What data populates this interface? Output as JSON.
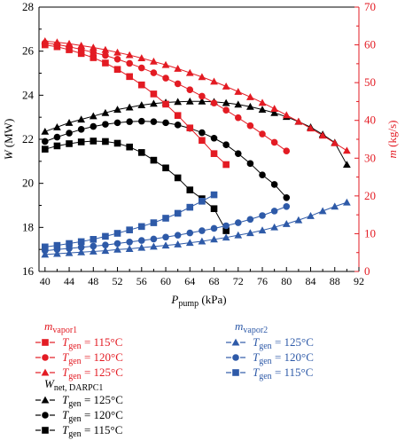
{
  "chart_data": {
    "type": "line",
    "x_label": "P",
    "x_label_sub": "pump",
    "x_label_unit": " (kPa)",
    "x_ticks": [
      40,
      44,
      48,
      52,
      56,
      60,
      64,
      68,
      72,
      76,
      80,
      84,
      88,
      92
    ],
    "x_range": [
      39,
      92
    ],
    "left_axis": {
      "label": "W",
      "label_unit": " (MW)",
      "ticks": [
        16,
        18,
        20,
        22,
        24,
        26,
        28
      ],
      "range": [
        16,
        28
      ],
      "color": "#000000"
    },
    "right_axis": {
      "label": "m",
      "label_unit": " (kg/s)",
      "ticks": [
        0,
        10,
        20,
        30,
        40,
        50,
        60,
        70
      ],
      "range": [
        0,
        70
      ],
      "color": "#e31b23"
    },
    "legend": {
      "groups": [
        {
          "title": "m",
          "title_sub": "vapor1",
          "color": "#e31b23",
          "entries": [
            {
              "name": "T",
              "sub": "gen",
              "rest": " = 115°C",
              "marker": "square",
              "series": "m1_115"
            },
            {
              "name": "T",
              "sub": "gen",
              "rest": " = 120°C",
              "marker": "circle",
              "series": "m1_120"
            },
            {
              "name": "T",
              "sub": "gen",
              "rest": " = 125°C",
              "marker": "triangle",
              "series": "m1_125"
            }
          ]
        },
        {
          "title": "m",
          "title_sub": "vapor2",
          "color": "#2e5aa8",
          "entries": [
            {
              "name": "T",
              "sub": "gen",
              "rest": " = 125°C",
              "marker": "triangle",
              "series": "m2_125"
            },
            {
              "name": "T",
              "sub": "gen",
              "rest": " = 120°C",
              "marker": "circle",
              "series": "m2_120"
            },
            {
              "name": "T",
              "sub": "gen",
              "rest": " = 115°C",
              "marker": "square",
              "series": "m2_115"
            }
          ]
        },
        {
          "title": "W",
          "title_sub": "net, DARPC1",
          "color": "#000000",
          "entries": [
            {
              "name": "T",
              "sub": "gen",
              "rest": " = 125°C",
              "marker": "triangle",
              "series": "w_125"
            },
            {
              "name": "T",
              "sub": "gen",
              "rest": " = 120°C",
              "marker": "circle",
              "series": "w_120"
            },
            {
              "name": "T",
              "sub": "gen",
              "rest": " = 115°C",
              "marker": "square",
              "series": "w_115"
            }
          ]
        }
      ]
    },
    "series": [
      {
        "id": "w_125",
        "axis": "left",
        "color": "#000000",
        "marker": "triangle",
        "x": [
          40,
          42,
          44,
          46,
          48,
          50,
          52,
          54,
          56,
          58,
          60,
          62,
          64,
          66,
          68,
          70,
          72,
          74,
          76,
          78,
          80,
          82,
          84,
          86,
          88,
          90
        ],
        "y": [
          22.35,
          22.55,
          22.75,
          22.9,
          23.05,
          23.2,
          23.35,
          23.45,
          23.55,
          23.62,
          23.67,
          23.7,
          23.72,
          23.72,
          23.7,
          23.65,
          23.58,
          23.48,
          23.35,
          23.2,
          23.02,
          22.8,
          22.55,
          22.22,
          21.85,
          20.85
        ]
      },
      {
        "id": "w_120",
        "axis": "left",
        "color": "#000000",
        "marker": "circle",
        "x": [
          40,
          42,
          44,
          46,
          48,
          50,
          52,
          54,
          56,
          58,
          60,
          62,
          64,
          66,
          68,
          70,
          72,
          74,
          76,
          78,
          80
        ],
        "y": [
          21.9,
          22.1,
          22.28,
          22.45,
          22.58,
          22.68,
          22.75,
          22.8,
          22.82,
          22.8,
          22.75,
          22.65,
          22.5,
          22.3,
          22.05,
          21.75,
          21.35,
          20.9,
          20.38,
          19.95,
          19.35
        ]
      },
      {
        "id": "w_115",
        "axis": "left",
        "color": "#000000",
        "marker": "square",
        "x": [
          40,
          42,
          44,
          46,
          48,
          50,
          52,
          54,
          56,
          58,
          60,
          62,
          64,
          66,
          68,
          70
        ],
        "y": [
          21.55,
          21.7,
          21.8,
          21.88,
          21.92,
          21.9,
          21.82,
          21.65,
          21.4,
          21.05,
          20.7,
          20.25,
          19.7,
          19.3,
          18.85,
          17.85
        ]
      },
      {
        "id": "m1_115",
        "axis": "right",
        "color": "#e31b23",
        "marker": "square",
        "x": [
          40,
          42,
          44,
          46,
          48,
          50,
          52,
          54,
          56,
          58,
          60,
          62,
          64,
          66,
          68,
          70
        ],
        "y": [
          60.0,
          59.5,
          58.7,
          57.7,
          56.6,
          55.2,
          53.5,
          51.6,
          49.4,
          47.0,
          44.3,
          41.3,
          38.0,
          34.7,
          31.2,
          28.3
        ]
      },
      {
        "id": "m1_120",
        "axis": "right",
        "color": "#e31b23",
        "marker": "circle",
        "x": [
          40,
          42,
          44,
          46,
          48,
          50,
          52,
          54,
          56,
          58,
          60,
          62,
          64,
          66,
          68,
          70,
          72,
          74,
          76,
          78,
          80
        ],
        "y": [
          60.5,
          60.1,
          59.5,
          58.8,
          58.0,
          57.2,
          56.2,
          55.1,
          53.9,
          52.6,
          51.2,
          49.7,
          48.1,
          46.4,
          44.6,
          42.7,
          40.7,
          38.6,
          36.4,
          34.2,
          31.9
        ]
      },
      {
        "id": "m1_125",
        "axis": "right",
        "color": "#e31b23",
        "marker": "triangle",
        "x": [
          40,
          42,
          44,
          46,
          48,
          50,
          52,
          54,
          56,
          58,
          60,
          62,
          64,
          66,
          68,
          70,
          72,
          74,
          76,
          78,
          80,
          82,
          84,
          86,
          88,
          90
        ],
        "y": [
          61.0,
          60.7,
          60.3,
          59.8,
          59.3,
          58.7,
          58.0,
          57.3,
          56.5,
          55.6,
          54.7,
          53.7,
          52.6,
          51.5,
          50.3,
          49.0,
          47.6,
          46.2,
          44.7,
          43.1,
          41.4,
          39.7,
          37.9,
          36.0,
          34.0,
          32.0
        ]
      },
      {
        "id": "m2_115",
        "axis": "right",
        "color": "#2e5aa8",
        "marker": "square",
        "x": [
          40,
          42,
          44,
          46,
          48,
          50,
          52,
          54,
          56,
          58,
          60,
          62,
          64,
          66,
          68
        ],
        "y": [
          6.5,
          6.9,
          7.4,
          7.9,
          8.5,
          9.3,
          10.1,
          11.0,
          11.9,
          12.9,
          14.1,
          15.4,
          17.0,
          18.6,
          20.3
        ]
      },
      {
        "id": "m2_120",
        "axis": "right",
        "color": "#2e5aa8",
        "marker": "circle",
        "x": [
          40,
          42,
          44,
          46,
          48,
          50,
          52,
          54,
          56,
          58,
          60,
          62,
          64,
          66,
          68,
          70,
          72,
          74,
          76,
          78,
          80
        ],
        "y": [
          5.5,
          5.8,
          6.1,
          6.4,
          6.7,
          7.0,
          7.4,
          7.8,
          8.2,
          8.6,
          9.1,
          9.6,
          10.2,
          10.8,
          11.4,
          12.1,
          12.9,
          13.8,
          14.8,
          16.0,
          17.2
        ]
      },
      {
        "id": "m2_125",
        "axis": "right",
        "color": "#2e5aa8",
        "marker": "triangle",
        "x": [
          40,
          42,
          44,
          46,
          48,
          50,
          52,
          54,
          56,
          58,
          60,
          62,
          64,
          66,
          68,
          70,
          72,
          74,
          76,
          78,
          80,
          82,
          84,
          86,
          88,
          90
        ],
        "y": [
          4.5,
          4.7,
          4.9,
          5.1,
          5.3,
          5.5,
          5.8,
          6.0,
          6.3,
          6.6,
          6.9,
          7.2,
          7.6,
          8.0,
          8.5,
          9.0,
          9.6,
          10.2,
          10.9,
          11.7,
          12.6,
          13.6,
          14.7,
          16.0,
          17.2,
          18.3
        ]
      }
    ]
  }
}
